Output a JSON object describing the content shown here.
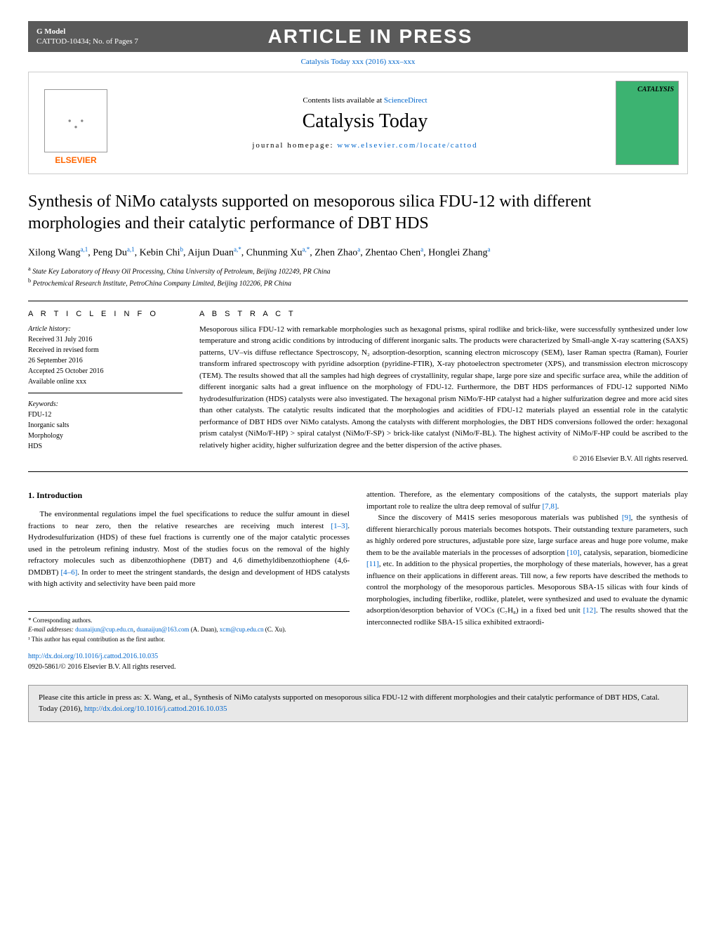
{
  "header": {
    "gmodel_label": "G Model",
    "gmodel_ref": "CATTOD-10434;   No. of Pages 7",
    "banner": "ARTICLE IN PRESS"
  },
  "doi_top": {
    "text": "Catalysis Today xxx (2016) xxx–xxx",
    "href": "#"
  },
  "journal_header": {
    "elsevier": "ELSEVIER",
    "contents_text": "Contents lists available at ",
    "contents_link": "ScienceDirect",
    "journal_name": "Catalysis Today",
    "homepage_label": "journal homepage: ",
    "homepage_link": "www.elsevier.com/locate/cattod",
    "cover_title": "CATALYSIS"
  },
  "article": {
    "title": "Synthesis of NiMo catalysts supported on mesoporous silica FDU-12 with different morphologies and their catalytic performance of DBT HDS",
    "authors_html": "Xilong Wang<sup>a,1</sup>, Peng Du<sup>a,1</sup>, Kebin Chi<sup>b</sup>, Aijun Duan<sup>a,*</sup>, Chunming Xu<sup>a,*</sup>, Zhen Zhao<sup>a</sup>, Zhentao Chen<sup>a</sup>, Honglei Zhang<sup>a</sup>",
    "affiliations": [
      "a State Key Laboratory of Heavy Oil Processing, China University of Petroleum, Beijing 102249, PR China",
      "b Petrochemical Research Institute, PetroChina Company Limited, Beijing 102206, PR China"
    ]
  },
  "article_info": {
    "heading": "A R T I C L E   I N F O",
    "history_label": "Article history:",
    "history": [
      "Received 31 July 2016",
      "Received in revised form",
      "26 September 2016",
      "Accepted 25 October 2016",
      "Available online xxx"
    ],
    "keywords_label": "Keywords:",
    "keywords": [
      "FDU-12",
      "Inorganic salts",
      "Morphology",
      "HDS"
    ]
  },
  "abstract": {
    "heading": "A B S T R A C T",
    "text": "Mesoporous silica FDU-12 with remarkable morphologies such as hexagonal prisms, spiral rodlike and brick-like, were successfully synthesized under low temperature and strong acidic conditions by introducing of different inorganic salts. The products were characterized by Small-angle X-ray scattering (SAXS) patterns, UV–vis diffuse reflectance Spectroscopy, N₂ adsorption-desorption, scanning electron microscopy (SEM), laser Raman spectra (Raman), Fourier transform infrared spectroscopy with pyridine adsorption (pyridine-FTIR), X-ray photoelectron spectrometer (XPS), and transmission electron microscopy (TEM). The results showed that all the samples had high degrees of crystallinity, regular shape, large pore size and specific surface area, while the addition of different inorganic salts had a great influence on the morphology of FDU-12. Furthermore, the DBT HDS performances of FDU-12 supported NiMo hydrodesulfurization (HDS) catalysts were also investigated. The hexagonal prism NiMo/F-HP catalyst had a higher sulfurization degree and more acid sites than other catalysts. The catalytic results indicated that the morphologies and acidities of FDU-12 materials played an essential role in the catalytic performance of DBT HDS over NiMo catalysts. Among the catalysts with different morphologies, the DBT HDS conversions followed the order: hexagonal prism catalyst (NiMo/F-HP) > spiral catalyst (NiMo/F-SP) > brick-like catalyst (NiMo/F-BL). The highest activity of NiMo/F-HP could be ascribed to the relatively higher acidity, higher sulfurization degree and the better dispersion of the active phases.",
    "copyright": "© 2016 Elsevier B.V. All rights reserved."
  },
  "introduction": {
    "heading": "1.  Introduction",
    "col1_p1": "The environmental regulations impel the fuel specifications to reduce the sulfur amount in diesel fractions to near zero, then the relative researches are receiving much interest [1–3]. Hydrodesulfurization (HDS) of these fuel fractions is currently one of the major catalytic processes used in the petroleum refining industry. Most of the studies focus on the removal of the highly refractory molecules such as dibenzothiophene (DBT) and 4,6 dimethyldibenzothiophene (4,6-DMDBT) [4–6]. In order to meet the stringent standards, the design and development of HDS catalysts with high activity and selectivity have been paid more",
    "col2_p1": "attention. Therefore, as the elementary compositions of the catalysts, the support materials play important role to realize the ultra deep removal of sulfur [7,8].",
    "col2_p2": "Since the discovery of M41S series mesoporous materials was published [9], the synthesis of different hierarchically porous materials becomes hotspots. Their outstanding texture parameters, such as highly ordered pore structures, adjustable pore size, large surface areas and huge pore volume, make them to be the available materials in the processes of adsorption [10], catalysis, separation, biomedicine [11], etc. In addition to the physical properties, the morphology of these materials, however, has a great influence on their applications in different areas. Till now, a few reports have described the methods to control the morphology of the mesoporous particles. Mesoporous SBA-15 silicas with four kinds of morphologies, including fiberlike, rodlike, platelet, were synthesized and used to evaluate the dynamic adsorption/desorption behavior of VOCs (C₇H₈) in a fixed bed unit [12]. The results showed that the interconnected rodlike SBA-15 silica exhibited extraordi-"
  },
  "footnotes": {
    "corr": "* Corresponding authors.",
    "email_label": "E-mail addresses: ",
    "email1": "duanaijun@cup.edu.cn",
    "email1_sep": ", ",
    "email2": "duanaijun@163.com",
    "email_name1": " (A. Duan), ",
    "email3": "xcm@cup.edu.cn",
    "email_name2": " (C. Xu).",
    "note1": "¹ This author has equal contribution as the first author."
  },
  "footer": {
    "doi_link": "http://dx.doi.org/10.1016/j.cattod.2016.10.035",
    "issn": "0920-5861/© 2016 Elsevier B.V. All rights reserved."
  },
  "cite_box": {
    "text": "Please cite this article in press as: X. Wang, et al., Synthesis of NiMo catalysts supported on mesoporous silica FDU-12 with different morphologies and their catalytic performance of DBT HDS, Catal. Today (2016), ",
    "link": "http://dx.doi.org/10.1016/j.cattod.2016.10.035"
  },
  "refs": {
    "r1_3": "[1–3]",
    "r4_6": "[4–6]",
    "r7_8": "[7,8]",
    "r9": "[9]",
    "r10": "[10]",
    "r11": "[11]",
    "r12": "[12]"
  }
}
